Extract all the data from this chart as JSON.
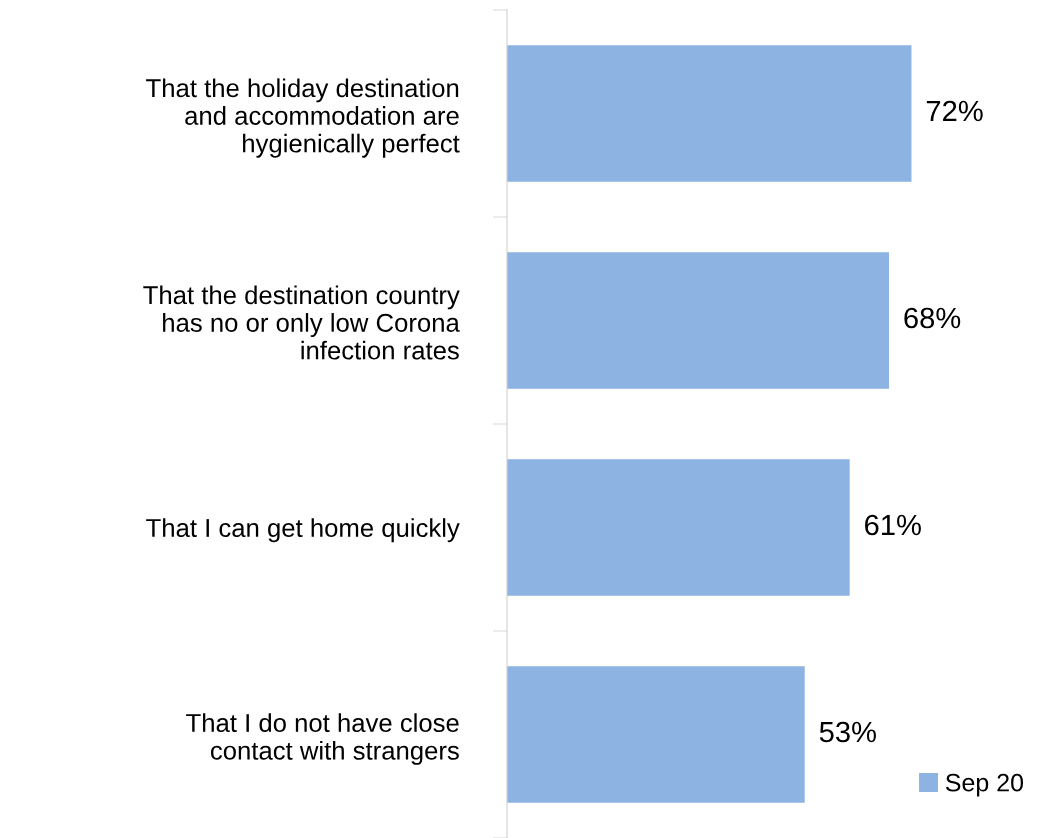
{
  "chart_data": {
    "type": "bar",
    "orientation": "horizontal",
    "categories": [
      "That the holiday destination\nand accommodation are\nhygienically perfect",
      "That the destination country\nhas no or only low Corona\ninfection rates",
      "That I can get home quickly",
      "That I do not have close\ncontact with strangers"
    ],
    "series": [
      {
        "name": "Sep 20",
        "color": "#8db3e2",
        "values": [
          72,
          68,
          61,
          53
        ],
        "value_labels": [
          "72%",
          "68%",
          "61%",
          "53%"
        ]
      }
    ],
    "tick_labels": "y",
    "grid": false,
    "legend": "bottom right"
  }
}
